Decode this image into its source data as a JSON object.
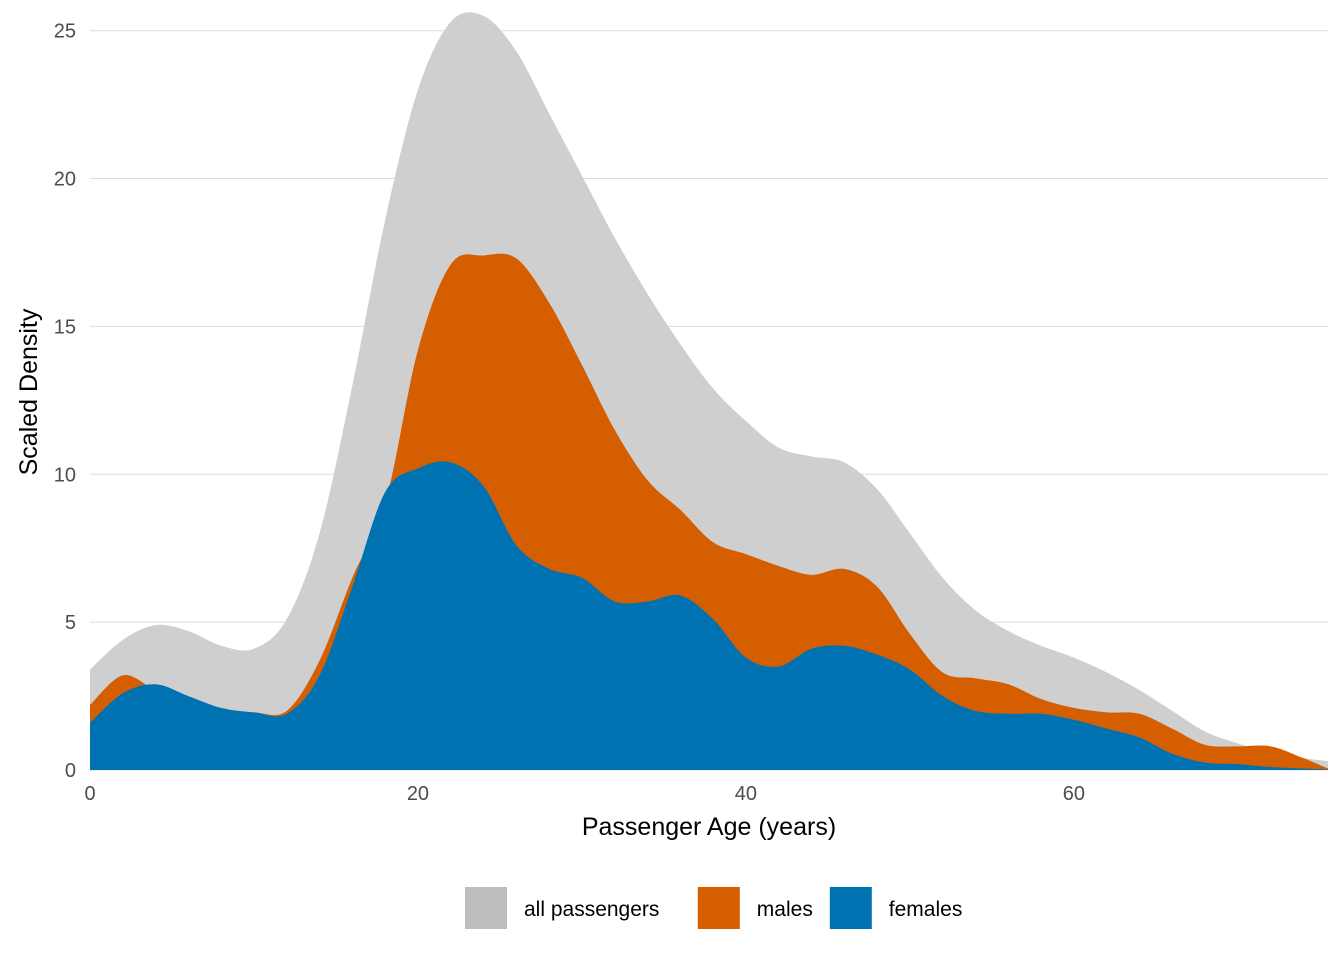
{
  "chart_data": {
    "type": "area",
    "xlabel": "Passenger Age (years)",
    "ylabel": "Scaled Density",
    "xlim": [
      0,
      75.5
    ],
    "ylim": [
      0,
      25.7
    ],
    "xticks": [
      0,
      20,
      40,
      60
    ],
    "yticks": [
      0,
      5,
      10,
      15,
      20,
      25
    ],
    "grid": "horizontal major gridlines",
    "legend_position": "bottom",
    "x": [
      0,
      2,
      4,
      6,
      8,
      10,
      12,
      14,
      16,
      18,
      20,
      22,
      24,
      26,
      28,
      30,
      32,
      34,
      36,
      38,
      40,
      42,
      44,
      46,
      48,
      50,
      52,
      54,
      56,
      58,
      60,
      62,
      64,
      66,
      68,
      70,
      72,
      74,
      75.5
    ],
    "series": [
      {
        "name": "all passengers",
        "color": "#cfcfcf",
        "values": [
          3.4,
          4.4,
          4.9,
          4.7,
          4.2,
          4.1,
          5.1,
          8.0,
          13.0,
          18.6,
          23.0,
          25.3,
          25.5,
          24.3,
          22.2,
          20.1,
          18.0,
          16.1,
          14.4,
          12.9,
          11.8,
          10.9,
          10.6,
          10.4,
          9.5,
          8.0,
          6.5,
          5.4,
          4.7,
          4.2,
          3.8,
          3.3,
          2.7,
          2.0,
          1.3,
          0.9,
          0.6,
          0.4,
          0.3
        ]
      },
      {
        "name": "males",
        "color": "#d55e00",
        "values": [
          2.2,
          3.2,
          2.7,
          2.3,
          2.0,
          1.95,
          2.0,
          3.7,
          6.5,
          9.0,
          14.2,
          17.1,
          17.4,
          17.3,
          15.8,
          13.7,
          11.5,
          9.8,
          8.8,
          7.7,
          7.3,
          6.9,
          6.6,
          6.8,
          6.2,
          4.6,
          3.3,
          3.1,
          2.9,
          2.4,
          2.1,
          1.95,
          1.9,
          1.4,
          0.85,
          0.8,
          0.8,
          0.4,
          0.05
        ]
      },
      {
        "name": "females",
        "color": "#0072b2",
        "values": [
          1.6,
          2.6,
          2.9,
          2.5,
          2.1,
          1.95,
          1.9,
          3.2,
          6.2,
          9.4,
          10.2,
          10.4,
          9.6,
          7.6,
          6.8,
          6.5,
          5.7,
          5.7,
          5.9,
          5.1,
          3.8,
          3.5,
          4.1,
          4.2,
          3.9,
          3.4,
          2.5,
          2.0,
          1.9,
          1.9,
          1.7,
          1.4,
          1.1,
          0.55,
          0.25,
          0.2,
          0.1,
          0.05,
          0.02
        ]
      }
    ]
  }
}
